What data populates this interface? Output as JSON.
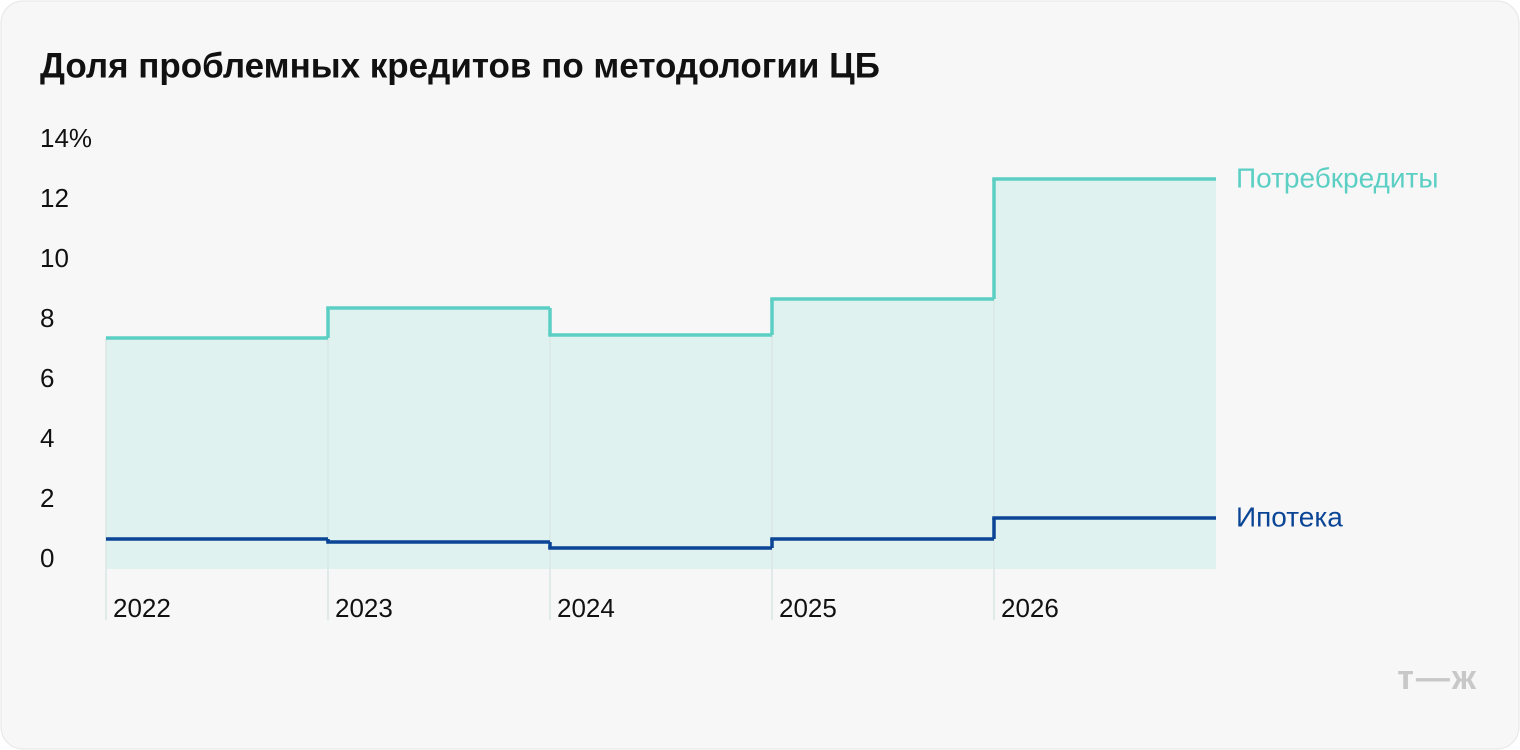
{
  "chart_data": {
    "type": "step-area",
    "title": "Доля проблемных кредитов по методологии ЦБ",
    "categories": [
      "2022",
      "2023",
      "2024",
      "2025",
      "2026"
    ],
    "series": [
      {
        "name": "Потребкредиты",
        "color": "#5ccfc4",
        "fill": "#e0f2f0",
        "values": [
          7.4,
          8.4,
          7.5,
          8.7,
          12.7
        ]
      },
      {
        "name": "Ипотека",
        "color": "#0b4596",
        "values": [
          0.7,
          0.6,
          0.4,
          0.7,
          1.4
        ]
      }
    ],
    "ylim": [
      -0.3,
      14
    ],
    "yticks": [
      0,
      2,
      4,
      6,
      8,
      10,
      12,
      {
        "value": 14,
        "label": "14%"
      }
    ],
    "legend": "line-end",
    "brand": "т—ж"
  }
}
